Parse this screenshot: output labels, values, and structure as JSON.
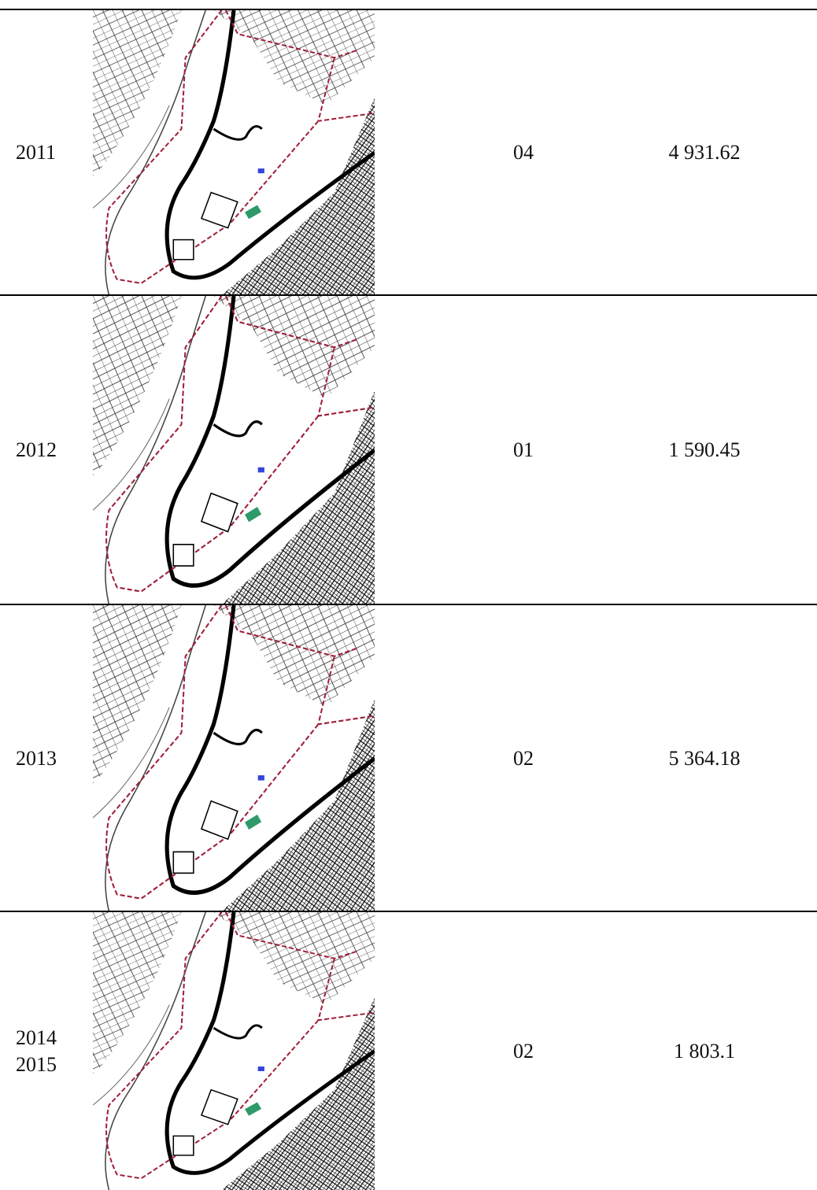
{
  "table": {
    "rows": [
      {
        "year": [
          "2011"
        ],
        "count": "04",
        "area": "4 931.62"
      },
      {
        "year": [
          "2012"
        ],
        "count": "01",
        "area": "1 590.45"
      },
      {
        "year": [
          "2013"
        ],
        "count": "02",
        "area": "5 364.18"
      },
      {
        "year": [
          "2014",
          "2015"
        ],
        "count": "02",
        "area": "1 803.1"
      }
    ]
  }
}
